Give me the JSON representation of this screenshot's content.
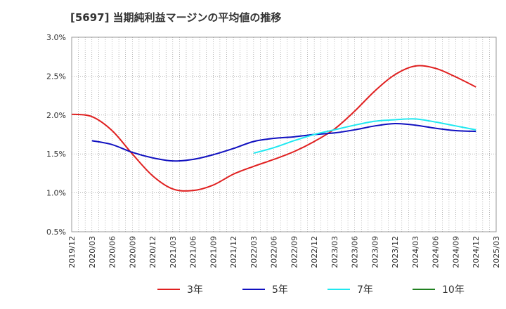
{
  "chart_data": {
    "type": "line",
    "title": "[5697]  当期純利益マージンの平均値の推移",
    "y_ticks": [
      "3.0%",
      "2.5%",
      "2.0%",
      "1.5%",
      "1.0%",
      "0.5%"
    ],
    "y_tick_values": [
      3.0,
      2.5,
      2.0,
      1.5,
      1.0,
      0.5
    ],
    "ylim": [
      0.5,
      3.0
    ],
    "x_ticks": [
      "2019/12",
      "2020/03",
      "2020/06",
      "2020/09",
      "2020/12",
      "2021/03",
      "2021/06",
      "2021/09",
      "2021/12",
      "2022/03",
      "2022/06",
      "2022/09",
      "2022/12",
      "2023/03",
      "2023/06",
      "2023/09",
      "2023/12",
      "2024/03",
      "2024/06",
      "2024/09",
      "2024/12",
      "2025/03"
    ],
    "grid": true,
    "legend_position": "bottom",
    "series": [
      {
        "name": "3年",
        "color": "#e02020",
        "points": [
          [
            "2019/12",
            2.01
          ],
          [
            "2020/03",
            1.98
          ],
          [
            "2020/06",
            1.8
          ],
          [
            "2020/09",
            1.5
          ],
          [
            "2020/12",
            1.22
          ],
          [
            "2021/03",
            1.05
          ],
          [
            "2021/06",
            1.03
          ],
          [
            "2021/09",
            1.1
          ],
          [
            "2021/12",
            1.24
          ],
          [
            "2022/03",
            1.34
          ],
          [
            "2022/06",
            1.43
          ],
          [
            "2022/09",
            1.53
          ],
          [
            "2022/12",
            1.66
          ],
          [
            "2023/03",
            1.82
          ],
          [
            "2023/06",
            2.05
          ],
          [
            "2023/09",
            2.31
          ],
          [
            "2023/12",
            2.52
          ],
          [
            "2024/03",
            2.63
          ],
          [
            "2024/06",
            2.6
          ],
          [
            "2024/09",
            2.49
          ],
          [
            "2024/12",
            2.36
          ]
        ]
      },
      {
        "name": "5年",
        "color": "#1010c0",
        "points": [
          [
            "2020/03",
            1.67
          ],
          [
            "2020/06",
            1.62
          ],
          [
            "2020/09",
            1.52
          ],
          [
            "2020/12",
            1.45
          ],
          [
            "2021/03",
            1.41
          ],
          [
            "2021/06",
            1.43
          ],
          [
            "2021/09",
            1.49
          ],
          [
            "2021/12",
            1.57
          ],
          [
            "2022/03",
            1.66
          ],
          [
            "2022/06",
            1.7
          ],
          [
            "2022/09",
            1.72
          ],
          [
            "2022/12",
            1.75
          ],
          [
            "2023/03",
            1.77
          ],
          [
            "2023/06",
            1.81
          ],
          [
            "2023/09",
            1.86
          ],
          [
            "2023/12",
            1.89
          ],
          [
            "2024/03",
            1.87
          ],
          [
            "2024/06",
            1.83
          ],
          [
            "2024/09",
            1.8
          ],
          [
            "2024/12",
            1.79
          ]
        ]
      },
      {
        "name": "7年",
        "color": "#20e8f0",
        "points": [
          [
            "2022/03",
            1.51
          ],
          [
            "2022/06",
            1.58
          ],
          [
            "2022/09",
            1.67
          ],
          [
            "2022/12",
            1.75
          ],
          [
            "2023/03",
            1.81
          ],
          [
            "2023/06",
            1.87
          ],
          [
            "2023/09",
            1.92
          ],
          [
            "2023/12",
            1.94
          ],
          [
            "2024/03",
            1.95
          ],
          [
            "2024/06",
            1.91
          ],
          [
            "2024/09",
            1.86
          ],
          [
            "2024/12",
            1.81
          ]
        ]
      },
      {
        "name": "10年",
        "color": "#208020",
        "points": []
      }
    ]
  }
}
